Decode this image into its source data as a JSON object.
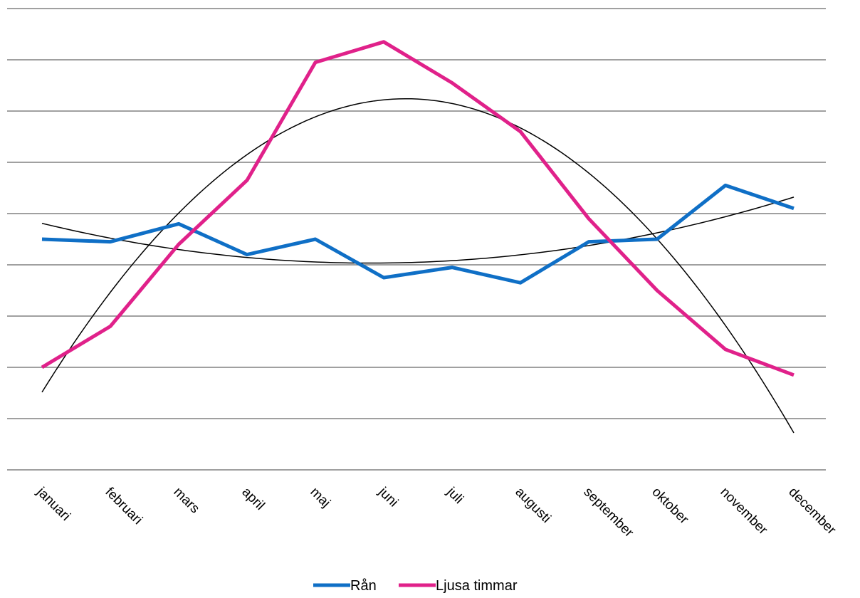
{
  "chart_data": {
    "type": "line",
    "categories": [
      "januari",
      "februari",
      "mars",
      "april",
      "maj",
      "juni",
      "juli",
      "augusti",
      "september",
      "oktober",
      "november",
      "december"
    ],
    "ylim": [
      0,
      9
    ],
    "grid": true,
    "legend_position": "bottom",
    "series": [
      {
        "name": "Rån",
        "color": "#0f6fc6",
        "values": [
          4.5,
          4.45,
          4.8,
          4.2,
          4.5,
          3.75,
          3.95,
          3.65,
          4.45,
          4.5,
          5.55,
          5.1
        ]
      },
      {
        "name": "Ljusa timmar",
        "color": "#e0218a",
        "values": [
          2.0,
          2.8,
          4.4,
          5.65,
          7.95,
          8.35,
          7.55,
          6.6,
          4.9,
          3.5,
          2.35,
          1.85
        ]
      }
    ],
    "trendlines": [
      {
        "series": "Rån",
        "kind": "polynomial",
        "color": "#000000"
      },
      {
        "series": "Ljusa timmar",
        "kind": "polynomial",
        "color": "#000000"
      }
    ]
  }
}
